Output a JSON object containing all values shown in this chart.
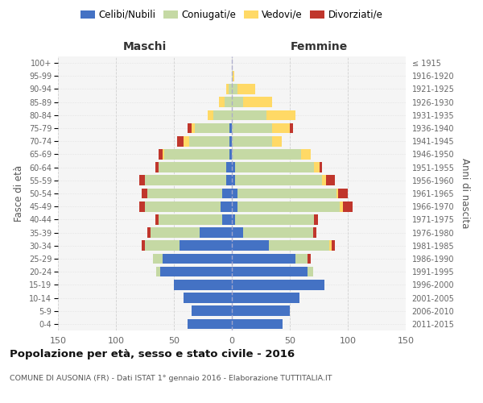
{
  "age_groups": [
    "0-4",
    "5-9",
    "10-14",
    "15-19",
    "20-24",
    "25-29",
    "30-34",
    "35-39",
    "40-44",
    "45-49",
    "50-54",
    "55-59",
    "60-64",
    "65-69",
    "70-74",
    "75-79",
    "80-84",
    "85-89",
    "90-94",
    "95-99",
    "100+"
  ],
  "birth_years": [
    "2011-2015",
    "2006-2010",
    "2001-2005",
    "1996-2000",
    "1991-1995",
    "1986-1990",
    "1981-1985",
    "1976-1980",
    "1971-1975",
    "1966-1970",
    "1961-1965",
    "1956-1960",
    "1951-1955",
    "1946-1950",
    "1941-1945",
    "1936-1940",
    "1931-1935",
    "1926-1930",
    "1921-1925",
    "1916-1920",
    "≤ 1915"
  ],
  "maschi_celibi": [
    38,
    35,
    42,
    50,
    62,
    60,
    45,
    28,
    8,
    10,
    8,
    5,
    5,
    2,
    2,
    2,
    0,
    0,
    0,
    0,
    0
  ],
  "maschi_coniugati": [
    0,
    0,
    0,
    0,
    3,
    8,
    30,
    42,
    55,
    65,
    65,
    70,
    58,
    56,
    35,
    30,
    16,
    6,
    3,
    0,
    0
  ],
  "maschi_vedovi": [
    0,
    0,
    0,
    0,
    0,
    0,
    0,
    0,
    0,
    0,
    0,
    0,
    0,
    2,
    5,
    3,
    5,
    5,
    2,
    0,
    0
  ],
  "maschi_divorziati": [
    0,
    0,
    0,
    0,
    0,
    0,
    3,
    3,
    3,
    5,
    5,
    5,
    3,
    3,
    5,
    3,
    0,
    0,
    0,
    0,
    0
  ],
  "femmine_nubili": [
    44,
    50,
    58,
    80,
    65,
    55,
    32,
    10,
    3,
    5,
    5,
    3,
    3,
    0,
    0,
    0,
    0,
    0,
    0,
    0,
    0
  ],
  "femmine_coniugate": [
    0,
    0,
    0,
    0,
    5,
    10,
    52,
    60,
    68,
    88,
    85,
    75,
    68,
    60,
    35,
    35,
    30,
    10,
    5,
    1,
    0
  ],
  "femmine_vedove": [
    0,
    0,
    0,
    0,
    0,
    0,
    2,
    0,
    0,
    3,
    2,
    3,
    5,
    8,
    8,
    15,
    25,
    25,
    15,
    1,
    0
  ],
  "femmine_divorziate": [
    0,
    0,
    0,
    0,
    0,
    3,
    3,
    3,
    3,
    8,
    8,
    8,
    2,
    0,
    0,
    3,
    0,
    0,
    0,
    0,
    0
  ],
  "color_celibi": "#4472C4",
  "color_coniugati": "#C5D9A4",
  "color_vedovi": "#FFD966",
  "color_divorziati": "#C0362C",
  "title": "Popolazione per età, sesso e stato civile - 2016",
  "subtitle": "COMUNE DI AUSONIA (FR) - Dati ISTAT 1° gennaio 2016 - Elaborazione TUTTITALIA.IT",
  "label_maschi": "Maschi",
  "label_femmine": "Femmine",
  "ylabel_left": "Fasce di età",
  "ylabel_right": "Anni di nascita",
  "legend_labels": [
    "Celibi/Nubili",
    "Coniugati/e",
    "Vedovi/e",
    "Divorziati/e"
  ],
  "xlim": 150,
  "bg_chart": "#f5f5f5",
  "bg_fig": "#ffffff"
}
